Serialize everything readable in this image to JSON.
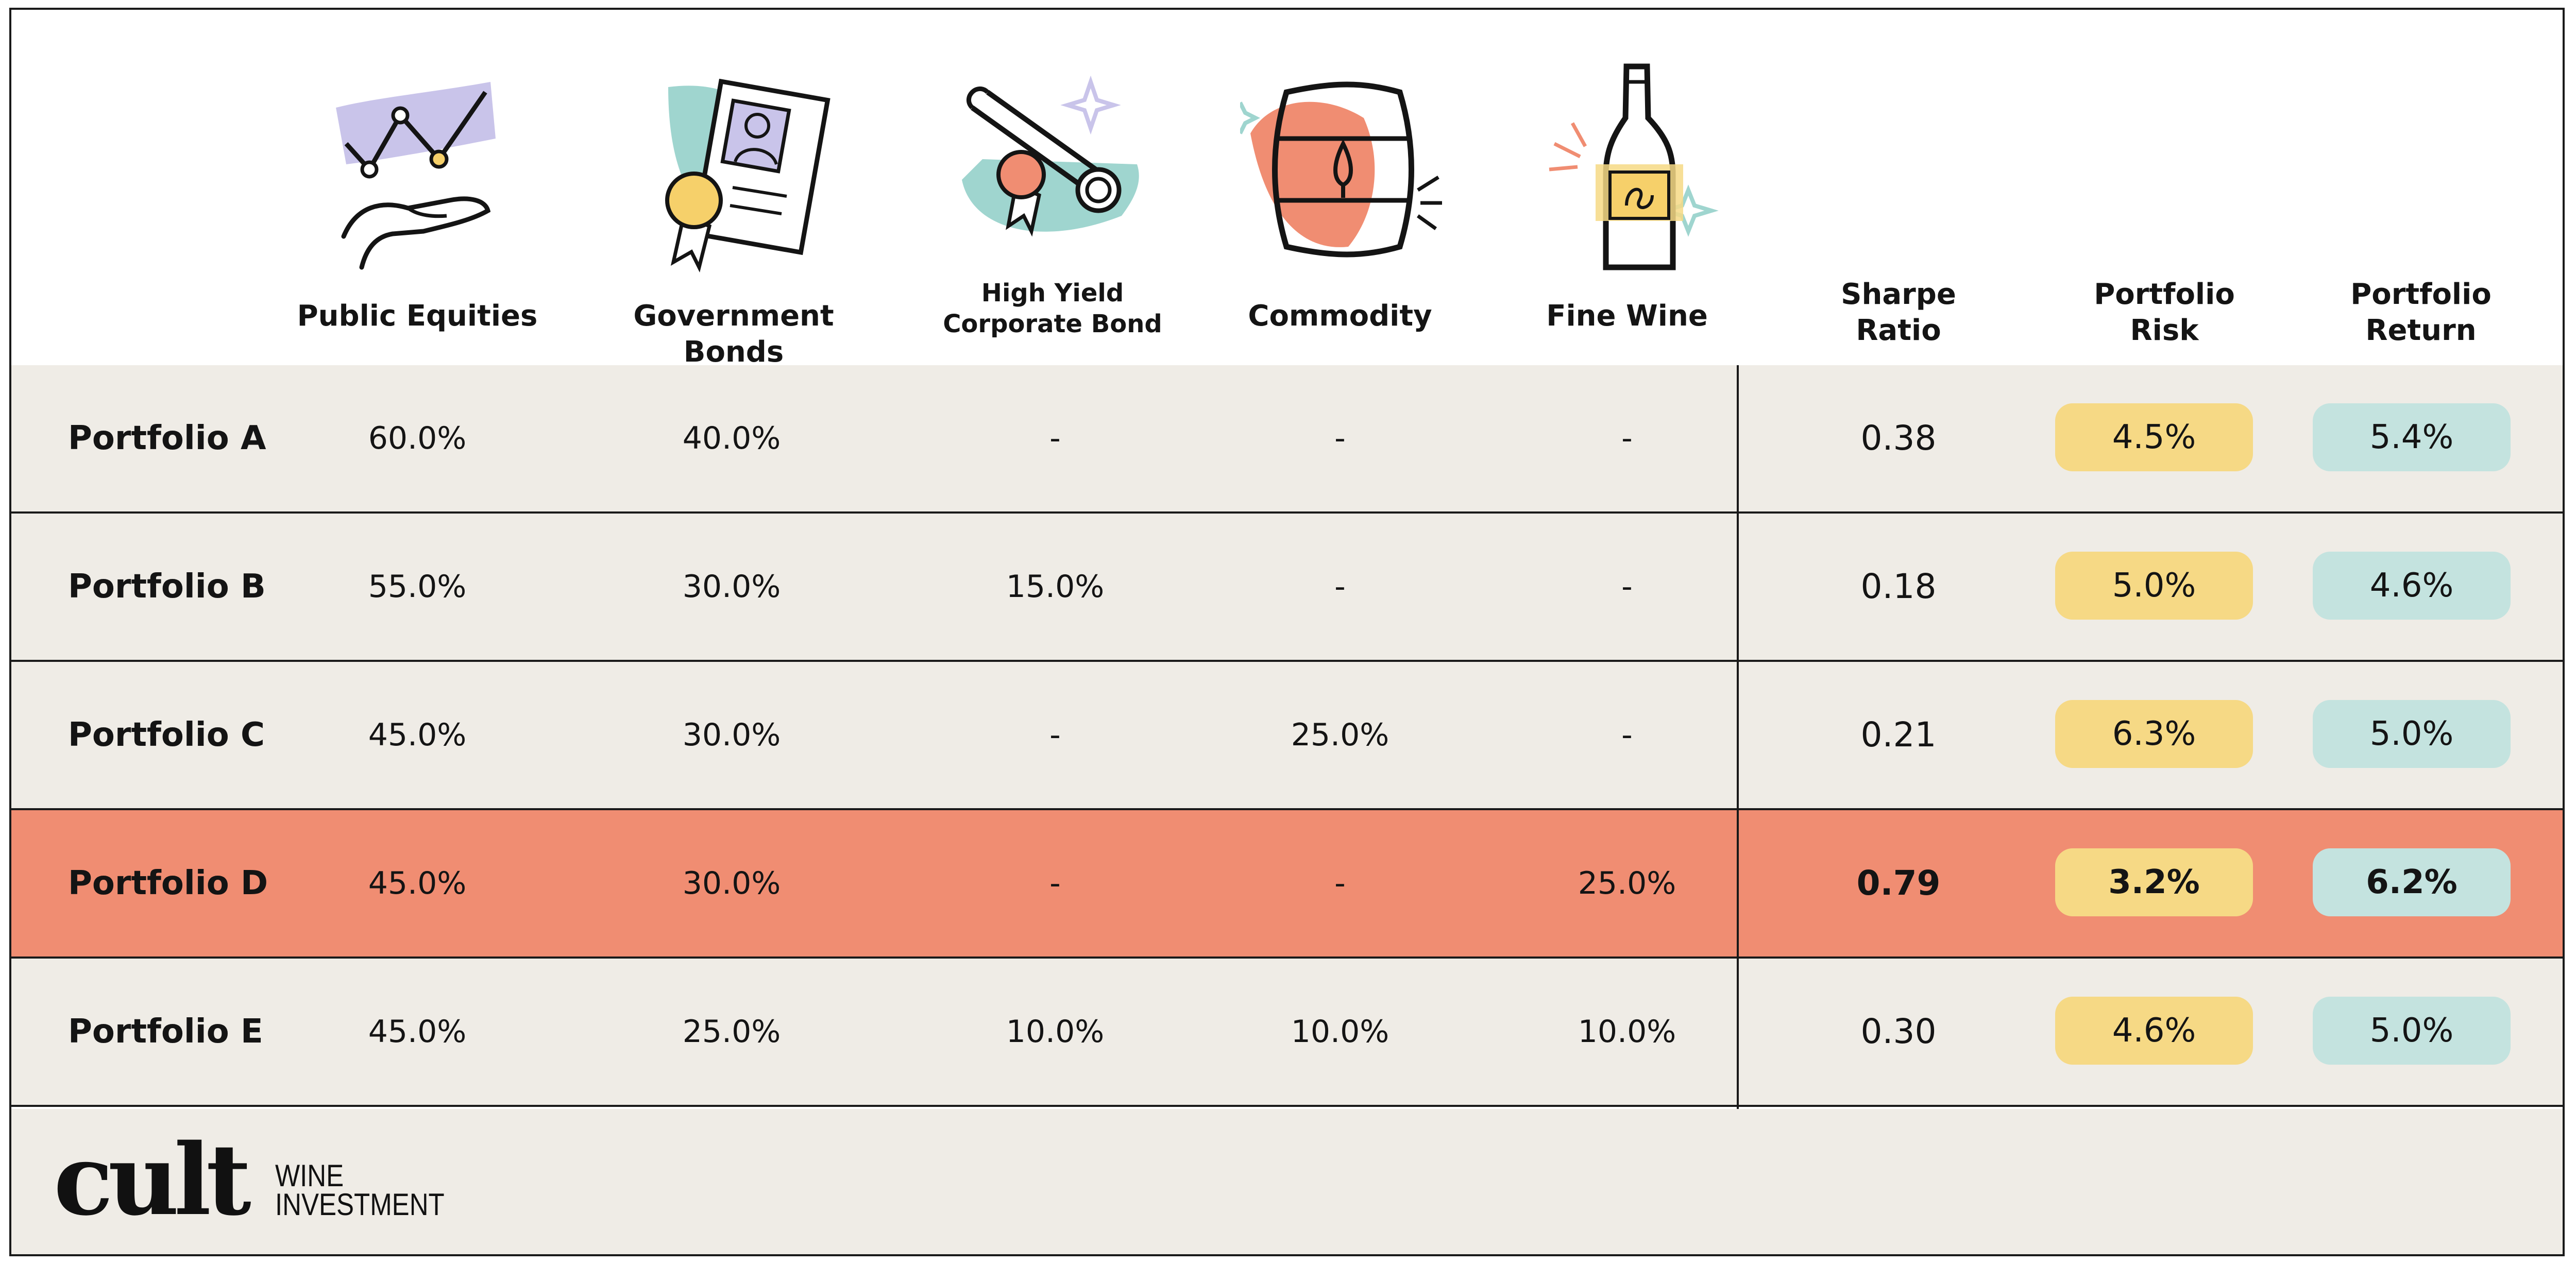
{
  "columns": {
    "equities": "Public Equities",
    "bonds": "Government Bonds",
    "hy_line1": "High Yield",
    "hy_line2": "Corporate Bond",
    "commodity": "Commodity",
    "wine": "Fine Wine",
    "sharpe_line1": "Sharpe",
    "sharpe_line2": "Ratio",
    "risk_line1": "Portfolio",
    "risk_line2": "Risk",
    "return_line1": "Portfolio",
    "return_line2": "Return"
  },
  "icons": {
    "equities": "hand-with-rising-chart-icon",
    "bonds": "certificate-with-ribbon-icon",
    "corporate_bond": "scroll-with-seal-icon",
    "commodity": "barrel-icon",
    "wine": "wine-bottle-icon"
  },
  "rows": [
    {
      "name": "Portfolio A",
      "equities": "60.0%",
      "bonds": "40.0%",
      "hy": "-",
      "commodity": "-",
      "wine": "-",
      "sharpe": "0.38",
      "risk": "4.5%",
      "ret": "5.4%"
    },
    {
      "name": "Portfolio B",
      "equities": "55.0%",
      "bonds": "30.0%",
      "hy": "15.0%",
      "commodity": "-",
      "wine": "-",
      "sharpe": "0.18",
      "risk": "5.0%",
      "ret": "4.6%"
    },
    {
      "name": "Portfolio C",
      "equities": "45.0%",
      "bonds": "30.0%",
      "hy": "-",
      "commodity": "25.0%",
      "wine": "-",
      "sharpe": "0.21",
      "risk": "6.3%",
      "ret": "5.0%"
    },
    {
      "name": "Portfolio D",
      "equities": "45.0%",
      "bonds": "30.0%",
      "hy": "-",
      "commodity": "-",
      "wine": "25.0%",
      "sharpe": "0.79",
      "risk": "3.2%",
      "ret": "6.2%"
    },
    {
      "name": "Portfolio E",
      "equities": "45.0%",
      "bonds": "25.0%",
      "hy": "10.0%",
      "commodity": "10.0%",
      "wine": "10.0%",
      "sharpe": "0.30",
      "risk": "4.6%",
      "ret": "5.0%"
    }
  ],
  "highlight_row": "Portfolio D",
  "colors": {
    "highlight": "#f08d72",
    "row_bg": "#efece6",
    "risk_pill": "#f6d985",
    "return_pill": "#c4e3df"
  },
  "logo": {
    "word": "cult",
    "sub_line1": "WINE",
    "sub_line2": "INVESTMENT"
  }
}
